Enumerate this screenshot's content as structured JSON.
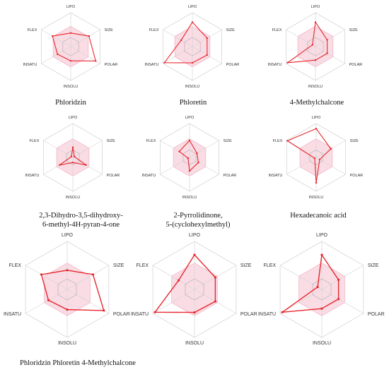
{
  "axes": [
    "LIPO",
    "SIZE",
    "POLAR",
    "INSOLU",
    "INSATU",
    "FLEX"
  ],
  "colors": {
    "optimal_fill": "#f6c9d6",
    "optimal_stroke": "#f2a6bc",
    "grid": "#d6d6d6",
    "profile": "#e8272e",
    "inner_polygon": "#b5b5b5"
  },
  "captions": [
    "Phloridzin",
    "Phloretin",
    "4-Methylchalcone",
    "2,3-Dihydro-3,5-dihydroxy-\n6-methyl-4H-pyran-4-one",
    "2-Pyrrolidinone,\n5-(cyclohexylmethyl)",
    "Hexadecanoic acid",
    "Phloridzin Phloretin 4-Methylchalcone"
  ],
  "chart_data": [
    {
      "type": "radar",
      "caption": "Phloridzin",
      "axes": [
        "LIPO",
        "SIZE",
        "POLAR",
        "INSOLU",
        "INSATU",
        "FLEX"
      ],
      "profile": [
        0.4,
        0.62,
        0.85,
        0.42,
        0.45,
        0.62
      ],
      "inner": [
        0.27,
        0.27,
        0.27,
        0.27,
        0.27,
        0.27
      ],
      "optimal_range": 0.6
    },
    {
      "type": "radar",
      "caption": "Phloretin",
      "axes": [
        "LIPO",
        "SIZE",
        "POLAR",
        "INSOLU",
        "INSATU",
        "FLEX"
      ],
      "profile": [
        0.72,
        0.5,
        0.5,
        0.48,
        0.95,
        0.38
      ],
      "inner": [
        0.27,
        0.27,
        0.27,
        0.27,
        0.27,
        0.27
      ],
      "optimal_range": 0.6
    },
    {
      "type": "radar",
      "caption": "4-Methylchalcone",
      "axes": [
        "LIPO",
        "SIZE",
        "POLAR",
        "INSOLU",
        "INSATU",
        "FLEX"
      ],
      "profile": [
        0.72,
        0.4,
        0.4,
        0.4,
        0.95,
        0.1
      ],
      "inner": [
        0.27,
        0.27,
        0.27,
        0.27,
        0.27,
        0.27
      ],
      "optimal_range": 0.6
    },
    {
      "type": "radar",
      "caption": "2,3-Dihydro-3,5-dihydroxy-6-methyl-4H-pyran-4-one",
      "axes": [
        "LIPO",
        "SIZE",
        "POLAR",
        "INSOLU",
        "INSATU",
        "FLEX"
      ],
      "profile": [
        0.3,
        0.05,
        0.45,
        0.15,
        0.45,
        0.05
      ],
      "inner": [
        0.22,
        0.22,
        0.22,
        0.22,
        0.22,
        0.22
      ],
      "optimal_range": 0.55
    },
    {
      "type": "radar",
      "caption": "2-Pyrrolidinone, 5-(cyclohexylmethyl)",
      "axes": [
        "LIPO",
        "SIZE",
        "POLAR",
        "INSOLU",
        "INSATU",
        "FLEX"
      ],
      "profile": [
        0.5,
        0.25,
        0.3,
        0.4,
        0.05,
        0.35
      ],
      "inner": [
        0.22,
        0.22,
        0.22,
        0.22,
        0.22,
        0.22
      ],
      "optimal_range": 0.55
    },
    {
      "type": "radar",
      "caption": "Hexadecanoic acid",
      "axes": [
        "LIPO",
        "SIZE",
        "POLAR",
        "INSOLU",
        "INSATU",
        "FLEX"
      ],
      "profile": [
        0.85,
        0.5,
        0.12,
        0.75,
        0.05,
        0.98
      ],
      "inner": [
        0.22,
        0.22,
        0.22,
        0.22,
        0.22,
        0.22
      ],
      "optimal_range": 0.55
    },
    {
      "type": "radar",
      "caption": "",
      "axes": [
        "LIPO",
        "SIZE",
        "POLAR",
        "INSOLU",
        "INSATU",
        "FLEX"
      ],
      "profile": [
        0.4,
        0.62,
        0.88,
        0.42,
        0.45,
        0.62
      ],
      "inner": [
        0.22,
        0.22,
        0.22,
        0.22,
        0.22,
        0.22
      ],
      "optimal_range": 0.55
    },
    {
      "type": "radar",
      "caption": "",
      "axes": [
        "LIPO",
        "SIZE",
        "POLAR",
        "INSOLU",
        "INSATU",
        "FLEX"
      ],
      "profile": [
        0.72,
        0.5,
        0.5,
        0.48,
        0.95,
        0.38
      ],
      "inner": [
        0.22,
        0.22,
        0.22,
        0.22,
        0.22,
        0.22
      ],
      "optimal_range": 0.55
    },
    {
      "type": "radar",
      "caption": "",
      "axes": [
        "LIPO",
        "SIZE",
        "POLAR",
        "INSOLU",
        "INSATU",
        "FLEX"
      ],
      "profile": [
        0.72,
        0.4,
        0.4,
        0.4,
        0.95,
        0.1
      ],
      "inner": [
        0.22,
        0.22,
        0.22,
        0.22,
        0.22,
        0.22
      ],
      "optimal_range": 0.55
    }
  ]
}
